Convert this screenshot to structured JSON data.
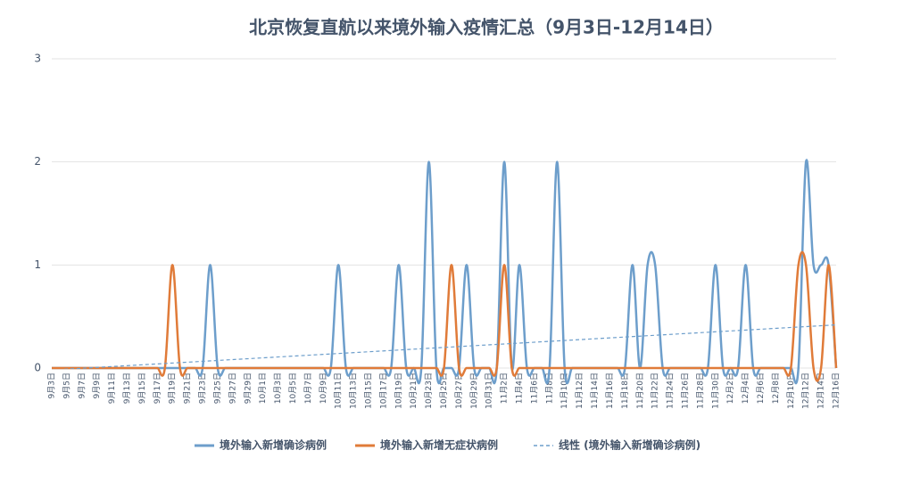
{
  "chart_data": {
    "type": "line",
    "title": "北京恢复直航以来境外输入疫情汇总（9月3日-12月14日）",
    "categories": [
      "9月3日",
      null,
      "9月5日",
      null,
      "9月7日",
      null,
      "9月9日",
      null,
      "9月11日",
      null,
      "9月13日",
      null,
      "9月15日",
      null,
      "9月17日",
      null,
      "9月19日",
      null,
      "9月21日",
      null,
      "9月23日",
      null,
      "9月25日",
      null,
      "9月27日",
      null,
      "9月29日",
      null,
      "10月1日",
      null,
      "10月3日",
      null,
      "10月5日",
      null,
      "10月7日",
      null,
      "10月9日",
      null,
      "10月11日",
      null,
      "10月13日",
      null,
      "10月15日",
      null,
      "10月17日",
      null,
      "10月19日",
      null,
      "10月21日",
      null,
      "10月23日",
      null,
      "10月25日",
      null,
      "10月27日",
      null,
      "10月29日",
      null,
      "10月31日",
      null,
      "11月2日",
      null,
      "11月4日",
      null,
      "11月6日",
      null,
      "11月8日",
      null,
      "11月10日",
      null,
      "11月12日",
      null,
      "11月14日",
      null,
      "11月16日",
      null,
      "11月18日",
      null,
      "11月20日",
      null,
      "11月22日",
      null,
      "11月24日",
      null,
      "11月26日",
      null,
      "11月28日",
      null,
      "11月30日",
      null,
      "12月2日",
      null,
      "12月4日",
      null,
      "12月6日",
      null,
      "12月8日",
      null,
      "12月10日",
      null,
      "12月12日",
      null,
      "12月14日",
      null,
      "12月16日"
    ],
    "series": [
      {
        "name": "境外输入新增确诊病例",
        "color": "#6d9ecb",
        "values": [
          0,
          0,
          0,
          0,
          0,
          0,
          0,
          0,
          0,
          0,
          0,
          0,
          0,
          0,
          0,
          0,
          0,
          0,
          0,
          0,
          0,
          1,
          0,
          0,
          0,
          0,
          0,
          0,
          0,
          0,
          0,
          0,
          0,
          0,
          0,
          0,
          0,
          0,
          1,
          0,
          0,
          0,
          0,
          0,
          0,
          0,
          1,
          0,
          0,
          0,
          2,
          0,
          0,
          0,
          0,
          1,
          0,
          0,
          0,
          0,
          2,
          0,
          1,
          0,
          0,
          0,
          0,
          2,
          0,
          0,
          0,
          0,
          0,
          0,
          0,
          0,
          0,
          1,
          0,
          1,
          1,
          0,
          0,
          0,
          0,
          0,
          0,
          0,
          1,
          0,
          0,
          0,
          1,
          0,
          0,
          0,
          0,
          0,
          0,
          0,
          2,
          1,
          1,
          1,
          0
        ]
      },
      {
        "name": "境外输入新增无症状病例",
        "color": "#e07b39",
        "values": [
          0,
          0,
          0,
          0,
          0,
          0,
          0,
          0,
          0,
          0,
          0,
          0,
          0,
          0,
          0,
          0,
          1,
          0,
          0,
          0,
          0,
          0,
          0,
          0,
          0,
          0,
          0,
          0,
          0,
          0,
          0,
          0,
          0,
          0,
          0,
          0,
          0,
          0,
          0,
          0,
          0,
          0,
          0,
          0,
          0,
          0,
          0,
          0,
          0,
          0,
          0,
          0,
          0,
          1,
          0,
          0,
          0,
          0,
          0,
          0,
          1,
          0,
          0,
          0,
          0,
          0,
          0,
          0,
          0,
          0,
          0,
          0,
          0,
          0,
          0,
          0,
          0,
          0,
          0,
          0,
          0,
          0,
          0,
          0,
          0,
          0,
          0,
          0,
          0,
          0,
          0,
          0,
          0,
          0,
          0,
          0,
          0,
          0,
          0,
          1,
          1,
          0,
          0,
          1,
          0
        ]
      }
    ],
    "trendline": {
      "name": "线性 (境外输入新增确诊病例)",
      "color": "#6d9ecb",
      "series": 0
    },
    "ylim": [
      0,
      3
    ],
    "yticks": [
      0,
      1,
      2,
      3
    ],
    "grid": true,
    "legend": "bottom"
  }
}
